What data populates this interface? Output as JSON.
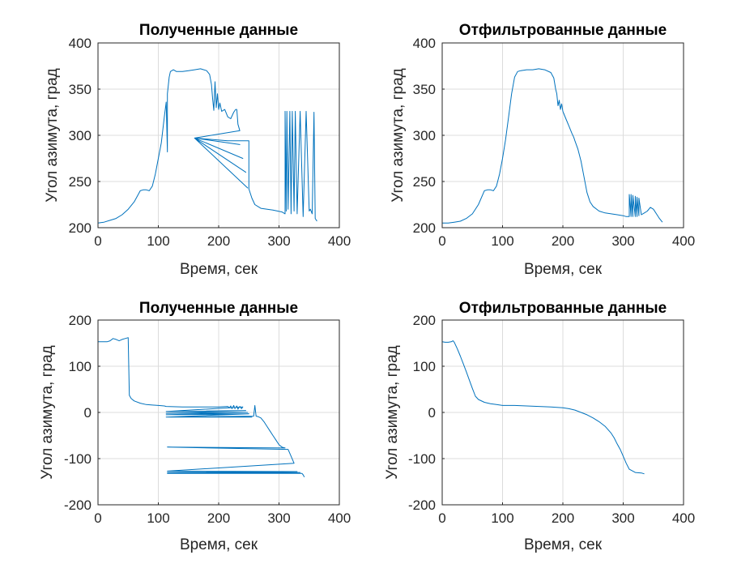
{
  "chart_data": [
    {
      "type": "line",
      "title": "Полученные данные",
      "xlabel": "Время, сек",
      "ylabel": "Угол азимута, град",
      "xlim": [
        0,
        400
      ],
      "ylim": [
        200,
        400
      ],
      "xticks": [
        "0",
        "100",
        "200",
        "300",
        "400"
      ],
      "yticks": [
        "200",
        "250",
        "300",
        "350",
        "400"
      ],
      "grid": true,
      "color": "#0072bd",
      "x": [
        0,
        10,
        20,
        30,
        40,
        50,
        60,
        70,
        75,
        80,
        85,
        90,
        95,
        100,
        105,
        110,
        113,
        115,
        115,
        118,
        120,
        125,
        130,
        140,
        150,
        160,
        170,
        180,
        185,
        188,
        190,
        192,
        194,
        196,
        198,
        200,
        202,
        205,
        210,
        215,
        220,
        225,
        228,
        230,
        232,
        235,
        160,
        235,
        160,
        240,
        160,
        245,
        160,
        248,
        160,
        215,
        250,
        250,
        255,
        260,
        270,
        290,
        305,
        310,
        310,
        312,
        313,
        315,
        318,
        320,
        322,
        325,
        327,
        330,
        335,
        340,
        345,
        350,
        352,
        355,
        358,
        360,
        363
      ],
      "y": [
        205,
        206,
        208,
        210,
        214,
        220,
        228,
        240,
        241,
        241,
        240,
        245,
        258,
        275,
        292,
        320,
        336,
        282,
        345,
        363,
        369,
        371,
        369,
        369,
        370,
        371,
        372,
        370,
        366,
        355,
        340,
        327,
        358,
        330,
        345,
        328,
        335,
        326,
        328,
        320,
        318,
        325,
        328,
        328,
        312,
        305,
        297,
        290,
        297,
        275,
        297,
        260,
        297,
        243,
        297,
        294,
        294,
        242,
        232,
        225,
        221,
        219,
        217,
        215,
        326,
        218,
        326,
        220,
        326,
        215,
        326,
        218,
        326,
        215,
        326,
        212,
        326,
        218,
        220,
        215,
        325,
        210,
        207
      ]
    },
    {
      "type": "line",
      "title": "Отфильтрованные данные",
      "xlabel": "Время, сек",
      "ylabel": "Угол азимута, град",
      "xlim": [
        0,
        400
      ],
      "ylim": [
        200,
        400
      ],
      "xticks": [
        "0",
        "100",
        "200",
        "300",
        "400"
      ],
      "yticks": [
        "200",
        "250",
        "300",
        "350",
        "400"
      ],
      "grid": true,
      "color": "#0072bd",
      "x": [
        0,
        10,
        20,
        30,
        40,
        50,
        60,
        70,
        75,
        80,
        85,
        90,
        95,
        100,
        105,
        110,
        115,
        120,
        125,
        130,
        140,
        150,
        160,
        170,
        180,
        185,
        188,
        190,
        192,
        194,
        196,
        198,
        200,
        205,
        210,
        215,
        218,
        220,
        225,
        230,
        235,
        240,
        245,
        250,
        260,
        270,
        280,
        290,
        300,
        305,
        310,
        310,
        313,
        313,
        316,
        316,
        320,
        320,
        323,
        323,
        326,
        326,
        330,
        335,
        340,
        345,
        350,
        355,
        360,
        365
      ],
      "y": [
        205,
        205,
        206,
        207,
        210,
        215,
        225,
        240,
        241,
        241,
        240,
        245,
        258,
        275,
        295,
        320,
        345,
        363,
        369,
        370,
        371,
        371,
        372,
        371,
        368,
        362,
        350,
        345,
        332,
        338,
        328,
        334,
        326,
        318,
        310,
        302,
        298,
        294,
        285,
        272,
        255,
        238,
        228,
        223,
        218,
        216,
        215,
        214,
        213,
        212,
        212,
        236,
        212,
        236,
        212,
        235,
        212,
        234,
        212,
        233,
        213,
        232,
        214,
        216,
        218,
        222,
        220,
        215,
        210,
        206
      ]
    },
    {
      "type": "line",
      "title": "Полученные данные",
      "xlabel": "Время, сек",
      "ylabel": "Угол азимута, град",
      "xlim": [
        0,
        400
      ],
      "ylim": [
        -200,
        200
      ],
      "xticks": [
        "0",
        "100",
        "200",
        "300",
        "400"
      ],
      "yticks": [
        "-200",
        "-100",
        "0",
        "100",
        "200"
      ],
      "grid": true,
      "color": "#0072bd",
      "x": [
        0,
        10,
        15,
        20,
        25,
        30,
        35,
        40,
        45,
        50,
        50,
        52,
        55,
        60,
        70,
        80,
        90,
        100,
        110,
        113,
        140,
        170,
        200,
        215,
        218,
        220,
        222,
        225,
        227,
        230,
        232,
        235,
        238,
        240,
        113,
        245,
        113,
        248,
        113,
        250,
        113,
        255,
        113,
        258,
        260,
        262,
        265,
        270,
        275,
        280,
        285,
        290,
        295,
        300,
        305,
        310,
        115,
        315,
        320,
        325,
        115,
        330,
        115,
        335,
        115,
        338,
        340,
        342
      ],
      "y": [
        153,
        153,
        153,
        155,
        160,
        158,
        155,
        158,
        160,
        162,
        160,
        37,
        30,
        25,
        20,
        17,
        16,
        15,
        14,
        13,
        12,
        12,
        12,
        13,
        10,
        14,
        8,
        15,
        8,
        14,
        7,
        13,
        8,
        12,
        2,
        4,
        -2,
        0,
        -5,
        -3,
        -10,
        -10,
        -10,
        -8,
        15,
        -8,
        -9,
        -12,
        -20,
        -30,
        -40,
        -50,
        -60,
        -70,
        -75,
        -77,
        -75,
        -80,
        -95,
        -110,
        -127,
        -128,
        -130,
        -130,
        -132,
        -132,
        -135,
        -140
      ]
    },
    {
      "type": "line",
      "title": "Отфильтрованные данные",
      "xlabel": "Время, сек",
      "ylabel": "Угол азимута, град",
      "xlim": [
        0,
        400
      ],
      "ylim": [
        -200,
        200
      ],
      "xticks": [
        "0",
        "100",
        "200",
        "300",
        "400"
      ],
      "yticks": [
        "-200",
        "-100",
        "0",
        "100",
        "200"
      ],
      "grid": true,
      "color": "#0072bd",
      "x": [
        0,
        5,
        10,
        15,
        18,
        20,
        25,
        30,
        35,
        40,
        45,
        50,
        55,
        60,
        70,
        80,
        90,
        100,
        120,
        140,
        160,
        180,
        200,
        210,
        220,
        230,
        240,
        250,
        260,
        270,
        280,
        285,
        290,
        295,
        300,
        305,
        310,
        320,
        330,
        335
      ],
      "y": [
        153,
        152,
        152,
        153,
        155,
        152,
        138,
        122,
        105,
        88,
        70,
        52,
        35,
        28,
        22,
        19,
        17,
        15,
        15,
        14,
        13,
        12,
        10,
        8,
        5,
        0,
        -5,
        -12,
        -20,
        -30,
        -45,
        -55,
        -68,
        -80,
        -95,
        -110,
        -123,
        -130,
        -131,
        -133
      ]
    }
  ]
}
